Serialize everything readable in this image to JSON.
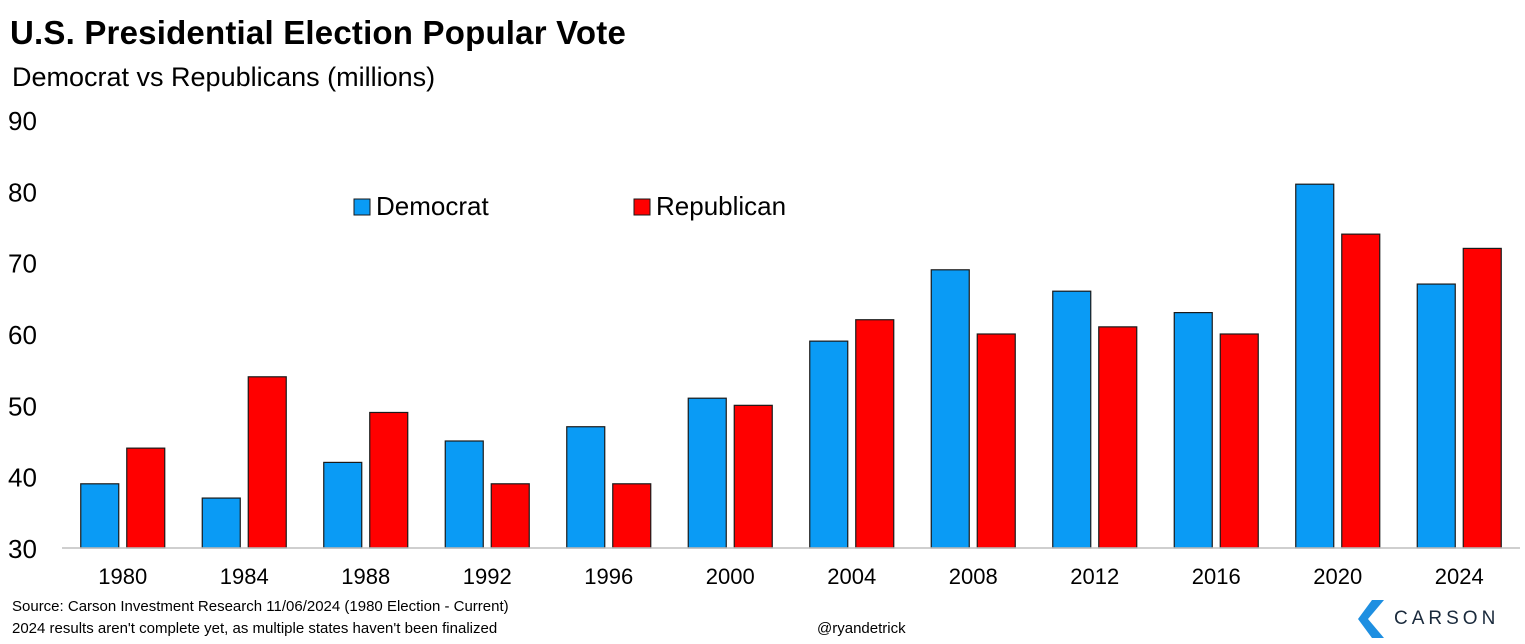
{
  "title": "U.S. Presidential Election Popular Vote",
  "subtitle": "Democrat vs Republicans (millions)",
  "footer": {
    "source": "Source: Carson Investment Research 11/06/2024 (1980 Election - Current)",
    "note": "2024 results aren't complete yet, as multiple states haven't been finalized",
    "handle": "@ryandetrick",
    "brand": "CARSON",
    "brand_icon": "carson-logo-icon"
  },
  "colors": {
    "democrat": "#0A9BF5",
    "republican": "#FF0000",
    "brand_blue": "#1E8FE1"
  },
  "chart_data": {
    "type": "bar",
    "categories": [
      "1980",
      "1984",
      "1988",
      "1992",
      "1996",
      "2000",
      "2004",
      "2008",
      "2012",
      "2016",
      "2020",
      "2024"
    ],
    "series": [
      {
        "name": "Democrat",
        "values": [
          39,
          37,
          42,
          45,
          47,
          51,
          59,
          69,
          66,
          63,
          81,
          67
        ]
      },
      {
        "name": "Republican",
        "values": [
          44,
          54,
          49,
          39,
          39,
          50,
          62,
          60,
          61,
          60,
          74,
          72
        ]
      }
    ],
    "ylim": [
      30,
      90
    ],
    "yticks": [
      30,
      40,
      50,
      60,
      70,
      80,
      90
    ],
    "grid": false,
    "legend": "top-left"
  }
}
